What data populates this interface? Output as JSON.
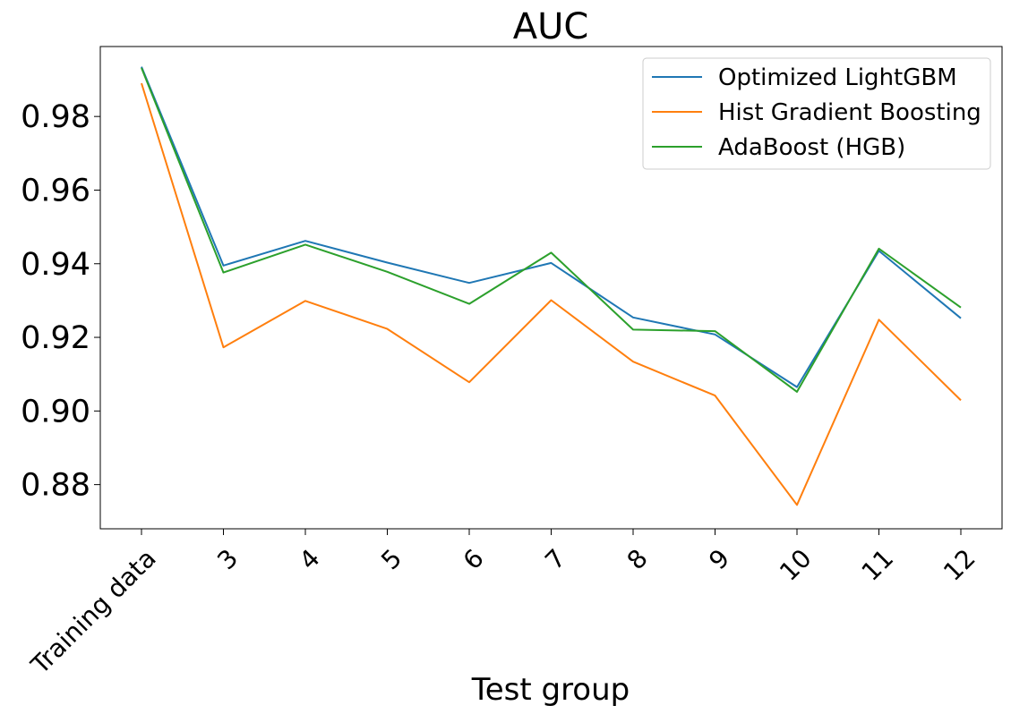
{
  "chart_data": {
    "type": "line",
    "title": "AUC",
    "xlabel": "Test group",
    "ylabel": "",
    "categories": [
      "Training data",
      "3",
      "4",
      "5",
      "6",
      "7",
      "8",
      "9",
      "10",
      "11",
      "12"
    ],
    "ylim": [
      0.868,
      0.999
    ],
    "yticks": [
      0.88,
      0.9,
      0.92,
      0.94,
      0.96,
      0.98
    ],
    "ytick_labels": [
      "0.88",
      "0.90",
      "0.92",
      "0.94",
      "0.96",
      "0.98"
    ],
    "grid": false,
    "legend_position": "top-right",
    "series": [
      {
        "name": "Optimized LightGBM",
        "color": "#1f77b4",
        "values": [
          0.9935,
          0.9395,
          0.9462,
          0.9403,
          0.9348,
          0.9402,
          0.9254,
          0.9208,
          0.9065,
          0.9435,
          0.9252
        ]
      },
      {
        "name": "Hist Gradient Boosting",
        "color": "#ff7f0e",
        "values": [
          0.989,
          0.9173,
          0.9299,
          0.9223,
          0.9078,
          0.9301,
          0.9134,
          0.9042,
          0.8745,
          0.9248,
          0.9029
        ]
      },
      {
        "name": "AdaBoost (HGB)",
        "color": "#2ca02c",
        "values": [
          0.9932,
          0.9376,
          0.9452,
          0.9378,
          0.9291,
          0.943,
          0.9221,
          0.9217,
          0.9052,
          0.9441,
          0.9281
        ]
      }
    ]
  }
}
